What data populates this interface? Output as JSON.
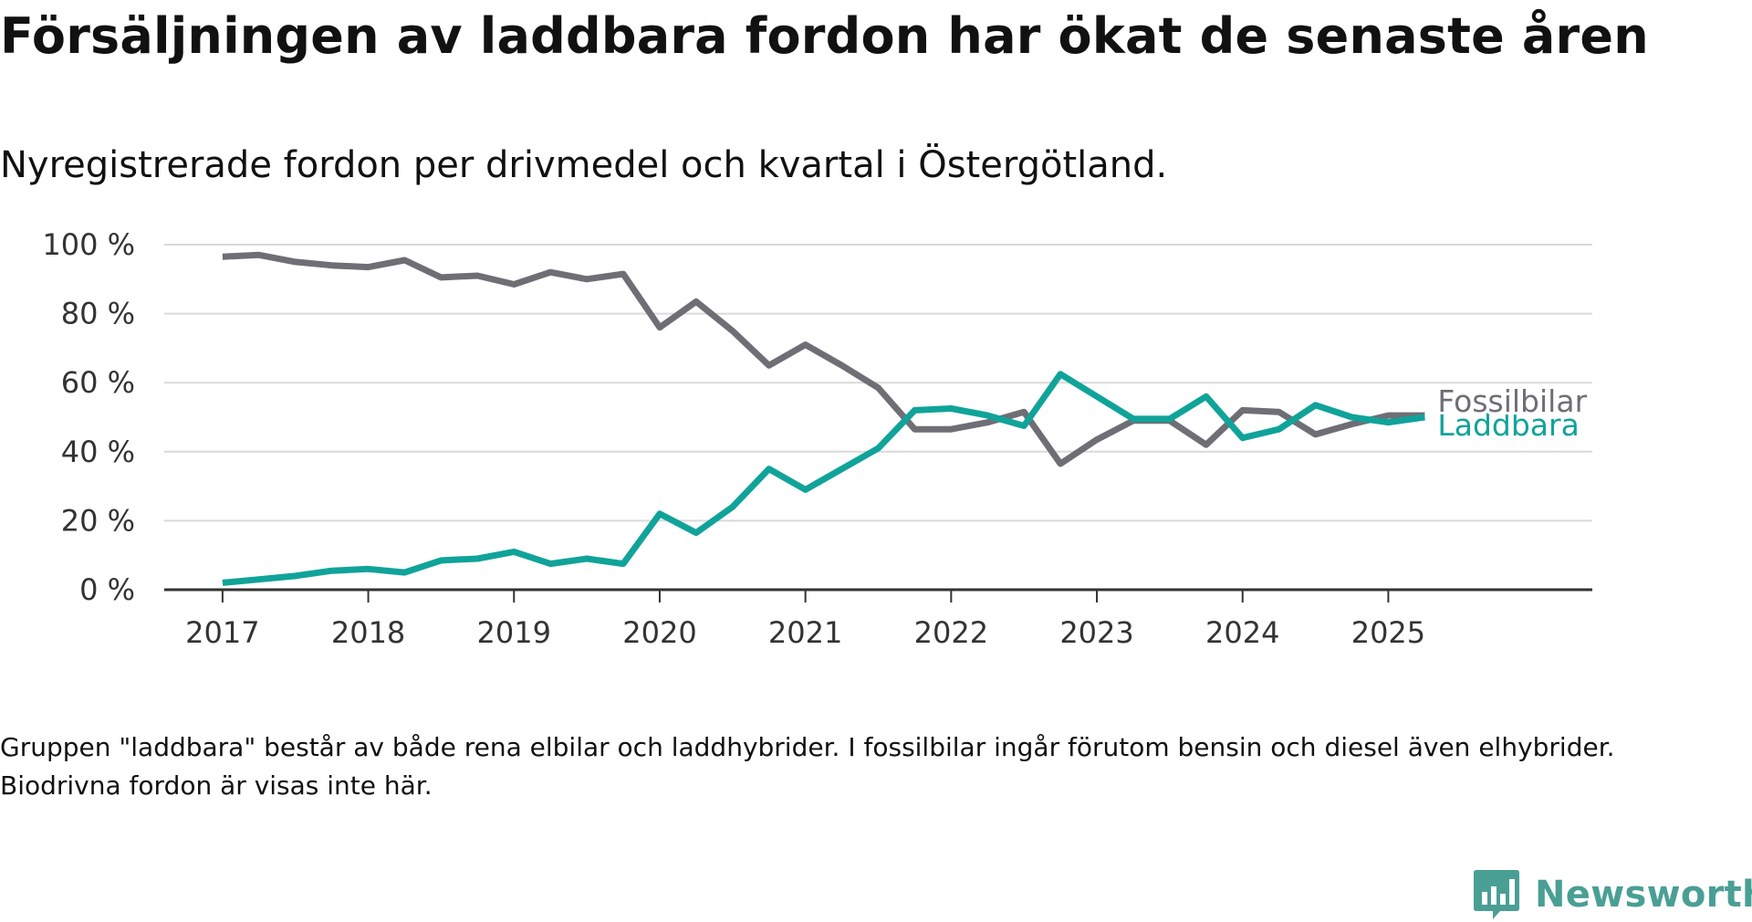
{
  "title": "Försäljningen av laddbara fordon har ökat de senaste åren",
  "subtitle": "Nyregistrerade fordon per drivmedel och kvartal i Östergötland.",
  "footnote": "Gruppen \"laddbara\" består av både rena elbilar och laddhybrider. I fossilbilar ingår förutom bensin och diesel även elhybrider. Biodrivna fordon är visas inte här.",
  "brand": {
    "name": "Newsworthy"
  },
  "chart_data": {
    "type": "line",
    "title": "Försäljningen av laddbara fordon har ökat de senaste åren",
    "subtitle": "Nyregistrerade fordon per drivmedel och kvartal i Östergötland.",
    "xlabel": "",
    "ylabel": "",
    "xlim": [
      2016.6,
      2026.4
    ],
    "ylim": [
      0,
      100
    ],
    "x_ticks": [
      2017,
      2018,
      2019,
      2020,
      2021,
      2022,
      2023,
      2024,
      2025
    ],
    "x_tick_labels": [
      "2017",
      "2018",
      "2019",
      "2020",
      "2021",
      "2022",
      "2023",
      "2024",
      "2025"
    ],
    "y_ticks": [
      0,
      20,
      40,
      60,
      80,
      100
    ],
    "y_tick_labels": [
      "0 %",
      "20 %",
      "40 %",
      "60 %",
      "80 %",
      "100 %"
    ],
    "grid": true,
    "legend": "direct labels at line ends",
    "x": [
      "2017 Q1",
      "2017 Q2",
      "2017 Q3",
      "2017 Q4",
      "2018 Q1",
      "2018 Q2",
      "2018 Q3",
      "2018 Q4",
      "2019 Q1",
      "2019 Q2",
      "2019 Q3",
      "2019 Q4",
      "2020 Q1",
      "2020 Q2",
      "2020 Q3",
      "2020 Q4",
      "2021 Q1",
      "2021 Q2",
      "2021 Q3",
      "2021 Q4",
      "2022 Q1",
      "2022 Q2",
      "2022 Q3",
      "2022 Q4",
      "2023 Q1",
      "2023 Q2",
      "2023 Q3",
      "2023 Q4",
      "2024 Q1",
      "2024 Q2",
      "2024 Q3",
      "2024 Q4",
      "2025 Q1",
      "2025 Q2"
    ],
    "series": [
      {
        "name": "Fossilbilar",
        "color": "#6f6e75",
        "values": [
          96.5,
          97,
          95,
          94,
          93.5,
          95.5,
          90.5,
          91,
          88.5,
          92,
          90,
          91.5,
          76,
          83.5,
          75,
          65,
          71,
          65,
          58.5,
          46.5,
          46.5,
          48.5,
          51.5,
          36.5,
          43.5,
          49,
          49,
          42,
          52,
          51.5,
          45,
          48,
          50.5,
          50.5
        ]
      },
      {
        "name": "Laddbara",
        "color": "#10a39a",
        "values": [
          2,
          3,
          4,
          5.5,
          6,
          5,
          8.5,
          9,
          11,
          7.5,
          9,
          7.5,
          22,
          16.5,
          24,
          35,
          29,
          35,
          41,
          52,
          52.5,
          50.5,
          47.5,
          62.5,
          56,
          49.5,
          49.5,
          56,
          44,
          46.5,
          53.5,
          50,
          48.5,
          50
        ]
      }
    ]
  }
}
